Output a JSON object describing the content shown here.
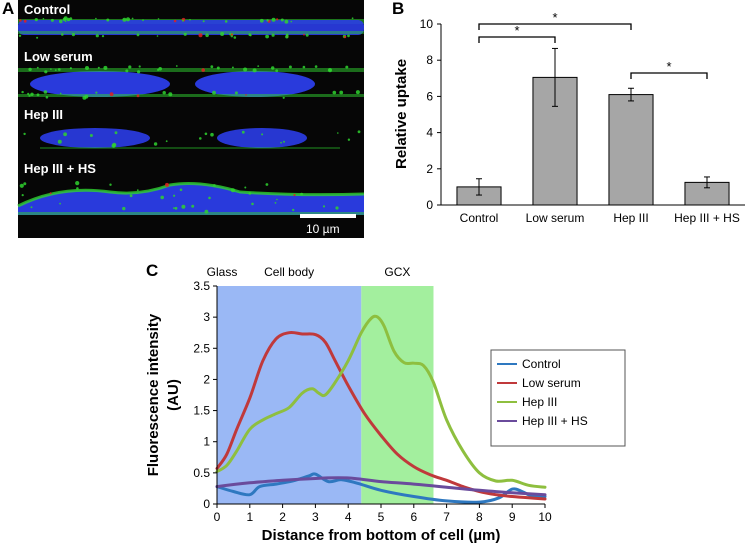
{
  "panels": {
    "a_letter": "A",
    "b_letter": "B",
    "c_letter": "C"
  },
  "panel_a": {
    "rows": [
      "Control",
      "Low serum",
      "Hep III",
      "Hep III + HS"
    ],
    "scale_bar_label": "10 µm",
    "colors": {
      "background": "#060606",
      "nucleus": "#2b3de8",
      "membrane": "#2fd22f",
      "dots": "#e02020"
    }
  },
  "chart_data": [
    {
      "type": "bar",
      "title": "",
      "xlabel": "",
      "ylabel": "Relative uptake",
      "ylim": [
        0,
        10
      ],
      "yticks": [
        "0",
        "2",
        "4",
        "6",
        "8",
        "10"
      ],
      "categories": [
        "Control",
        "Low serum",
        "Hep III",
        "Hep III + HS"
      ],
      "values": [
        1.0,
        7.05,
        6.1,
        1.25
      ],
      "errors": [
        0.45,
        1.6,
        0.35,
        0.3
      ],
      "bar_color": "#a6a6a6",
      "significance": [
        {
          "from": 0,
          "to": 1,
          "label": "*"
        },
        {
          "from": 0,
          "to": 2,
          "label": "*"
        },
        {
          "from": 2,
          "to": 3,
          "label": "*"
        }
      ]
    },
    {
      "type": "line",
      "xlabel": "Distance from bottom of cell (µm)",
      "ylabel_line1": "Fluorescence intensity",
      "ylabel_line2": "(AU)",
      "xlim": [
        0,
        10
      ],
      "ylim": [
        0,
        3.5
      ],
      "xticks": [
        "0",
        "1",
        "2",
        "3",
        "4",
        "5",
        "6",
        "7",
        "8",
        "9",
        "10"
      ],
      "yticks": [
        "0",
        "0.5",
        "1",
        "1.5",
        "2",
        "2.5",
        "3",
        "3.5"
      ],
      "regions": [
        {
          "label": "Glass",
          "from": 0,
          "to": 0,
          "color": ""
        },
        {
          "label": "Cell body",
          "from": 0,
          "to": 4.4,
          "color": "#9ab8f5"
        },
        {
          "label": "GCX",
          "from": 4.4,
          "to": 6.6,
          "color": "#a3ef9e"
        }
      ],
      "legend": "right",
      "series": [
        {
          "name": "Control",
          "color": "#2e78c0",
          "x": [
            0,
            0.5,
            1,
            1.3,
            1.8,
            2.3,
            2.8,
            3.0,
            3.4,
            3.8,
            4.3,
            5,
            6,
            7,
            8,
            8.6,
            9.0,
            9.3,
            9.6,
            10
          ],
          "y": [
            0.28,
            0.2,
            0.15,
            0.28,
            0.32,
            0.37,
            0.45,
            0.48,
            0.36,
            0.39,
            0.33,
            0.22,
            0.12,
            0.05,
            0.03,
            0.1,
            0.24,
            0.2,
            0.13,
            0.12
          ]
        },
        {
          "name": "Low serum",
          "color": "#c0393b",
          "x": [
            0,
            0.3,
            0.6,
            1.0,
            1.4,
            1.8,
            2.2,
            2.6,
            3.0,
            3.3,
            3.6,
            4.0,
            4.5,
            5.0,
            5.5,
            6.0,
            6.5,
            7.0,
            7.5,
            8.0,
            8.5,
            9.0,
            9.5,
            10
          ],
          "y": [
            0.57,
            0.8,
            1.2,
            1.7,
            2.3,
            2.65,
            2.75,
            2.73,
            2.72,
            2.6,
            2.3,
            1.9,
            1.45,
            1.1,
            0.8,
            0.6,
            0.47,
            0.38,
            0.28,
            0.2,
            0.15,
            0.12,
            0.1,
            0.08
          ]
        },
        {
          "name": "Hep III",
          "color": "#8ebf3f",
          "x": [
            0,
            0.3,
            0.6,
            1.0,
            1.4,
            1.8,
            2.2,
            2.6,
            2.9,
            3.1,
            3.3,
            3.6,
            4.0,
            4.4,
            4.7,
            4.9,
            5.1,
            5.4,
            5.7,
            6.0,
            6.3,
            6.6,
            7.0,
            7.5,
            8.0,
            8.5,
            9.0,
            9.5,
            10
          ],
          "y": [
            0.52,
            0.62,
            0.85,
            1.2,
            1.35,
            1.45,
            1.55,
            1.78,
            1.85,
            1.78,
            1.75,
            1.95,
            2.3,
            2.75,
            2.98,
            3.0,
            2.85,
            2.45,
            2.27,
            2.26,
            2.22,
            1.95,
            1.35,
            0.85,
            0.5,
            0.37,
            0.38,
            0.3,
            0.27
          ]
        },
        {
          "name": "Hep III + HS",
          "color": "#6a4b9c",
          "x": [
            0,
            1,
            2,
            3,
            3.7,
            4.2,
            5,
            6,
            7,
            8,
            9,
            10
          ],
          "y": [
            0.28,
            0.34,
            0.38,
            0.41,
            0.42,
            0.41,
            0.36,
            0.32,
            0.27,
            0.22,
            0.18,
            0.15
          ]
        }
      ]
    }
  ]
}
